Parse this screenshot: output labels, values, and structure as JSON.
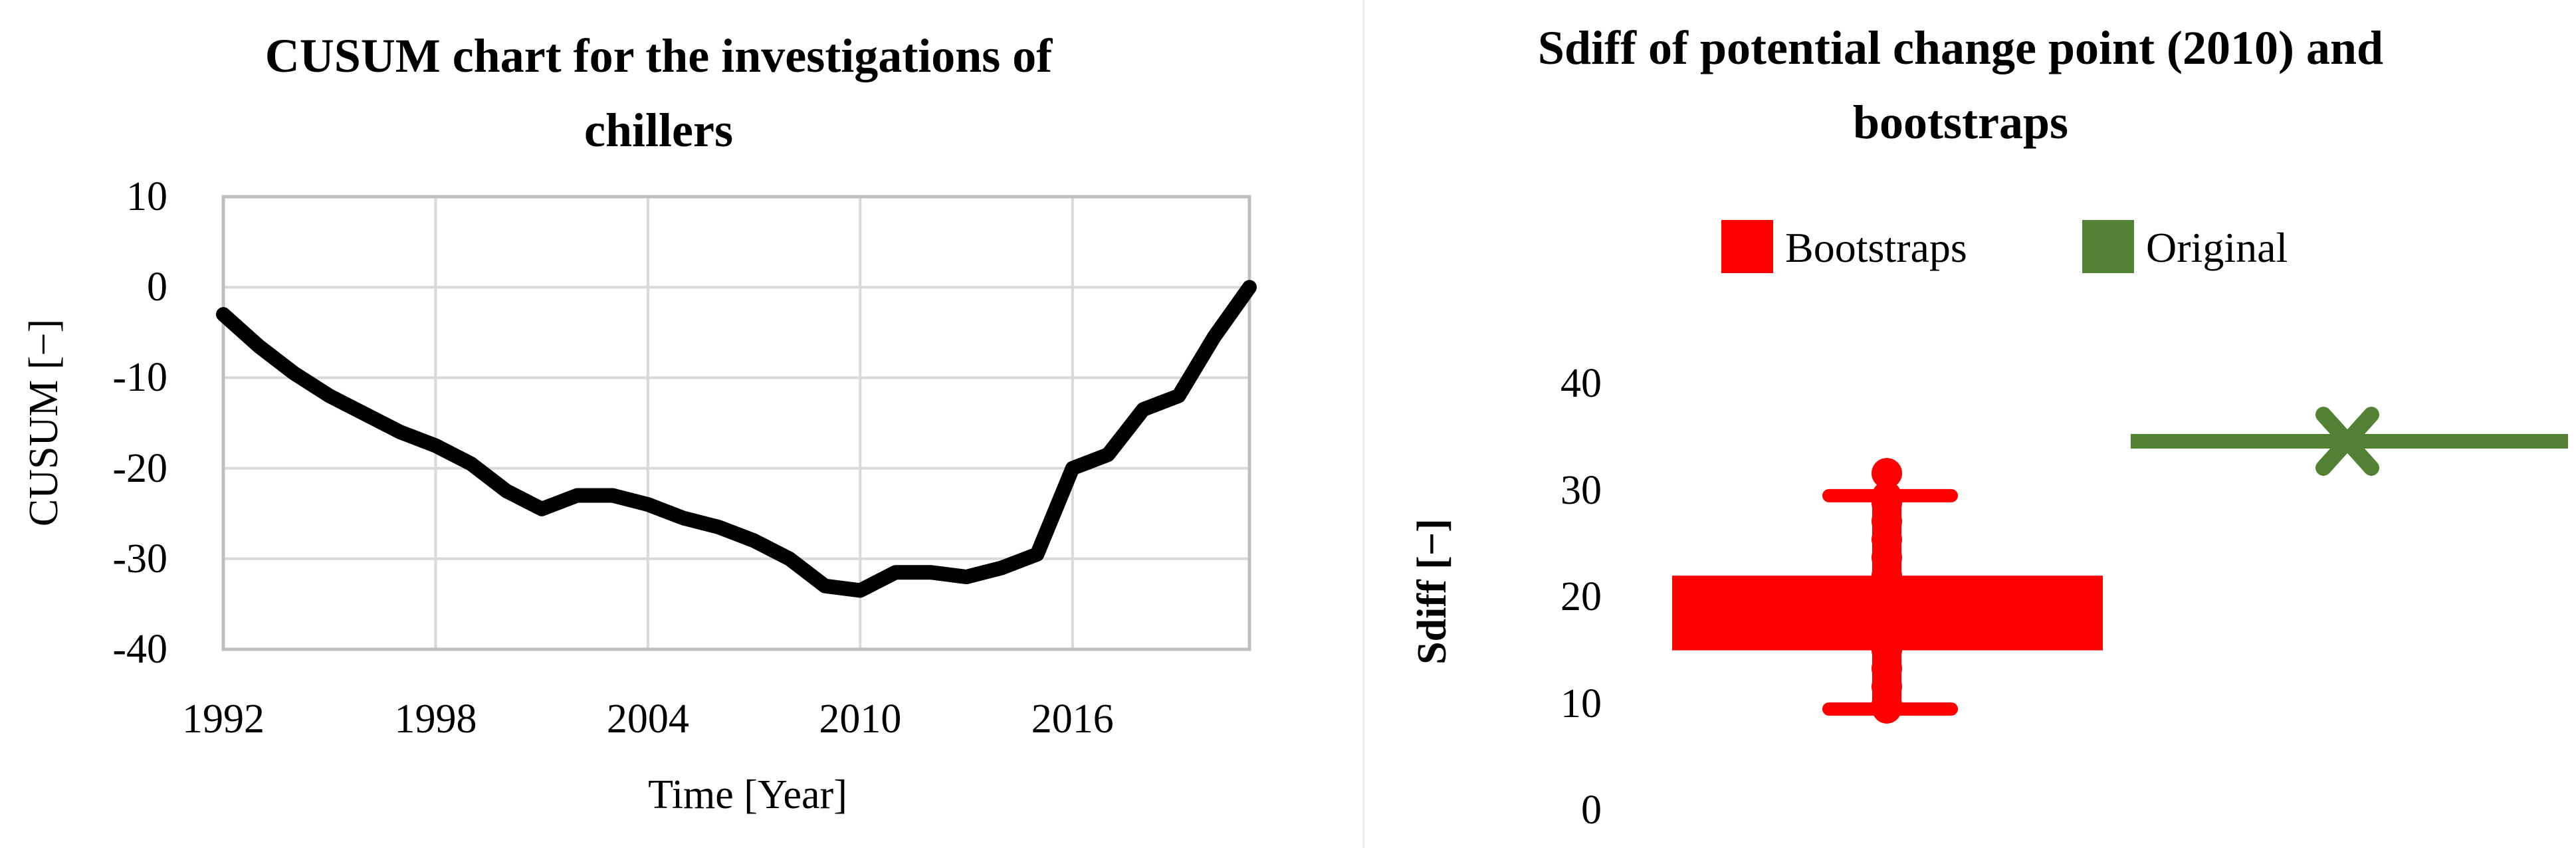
{
  "figure": {
    "left_chart": {
      "title_lines": [
        "CUSUM chart for the investigations of",
        "chillers"
      ],
      "y_axis_title": "CUSUM [−]",
      "x_axis_title": "Time [Year]",
      "y_tick_labels": [
        "10",
        "0",
        "-10",
        "-20",
        "-30",
        "-40"
      ],
      "x_tick_labels": [
        "1992",
        "1998",
        "2004",
        "2010",
        "2016"
      ]
    },
    "right_chart": {
      "title_lines": [
        "Sdiff of potential change point (2010) and",
        "bootstraps"
      ],
      "y_axis_title": "Sdiff  [−]",
      "y_tick_labels": [
        "40",
        "30",
        "20",
        "10",
        "0"
      ],
      "legend": [
        {
          "label": "Bootstraps",
          "color": "#FF0000"
        },
        {
          "label": "Original",
          "color": "#548235"
        }
      ]
    },
    "colors": {
      "line_black": "#000000",
      "bootstrap_red": "#FF0000",
      "original_green": "#548235",
      "gridline_gray": "#D9D9D9",
      "plot_border_gray": "#BFBFBF"
    }
  },
  "chart_data": [
    {
      "type": "line",
      "title": "CUSUM chart for the investigations of chillers",
      "xlabel": "Time [Year]",
      "ylabel": "CUSUM [−]",
      "x": [
        1992,
        1993,
        1994,
        1995,
        1996,
        1997,
        1998,
        1999,
        2000,
        2001,
        2002,
        2003,
        2004,
        2005,
        2006,
        2007,
        2008,
        2009,
        2010,
        2011,
        2012,
        2013,
        2014,
        2015,
        2016,
        2017,
        2018,
        2019,
        2020,
        2021
      ],
      "values": [
        -3,
        -6.5,
        -9.5,
        -12,
        -14,
        -16,
        -17.5,
        -19.5,
        -22.5,
        -24.5,
        -23,
        -23,
        -24,
        -25.5,
        -26.5,
        -28,
        -30,
        -33,
        -33.5,
        -31.5,
        -31.5,
        -32,
        -31,
        -29.5,
        -20,
        -18.5,
        -13.5,
        -12,
        -5.5,
        0
      ],
      "xlim": [
        1992,
        2021
      ],
      "ylim": [
        -40,
        10
      ],
      "xticks": [
        1992,
        1998,
        2004,
        2010,
        2016
      ],
      "yticks": [
        10,
        0,
        -10,
        -20,
        -30,
        -40
      ],
      "grid": true,
      "legend_position": "none",
      "line_color": "#000000",
      "minimum_note": "CUSUM minimum of -33.5 at year 2010 (potential change point)"
    },
    {
      "type": "boxplot",
      "title": "Sdiff of potential change point (2010) and bootstraps",
      "xlabel": "",
      "ylabel": "Sdiff [−]",
      "ylim": [
        0,
        45
      ],
      "yticks": [
        40,
        30,
        20,
        10,
        0
      ],
      "grid": false,
      "legend_position": "top",
      "series": [
        {
          "name": "Bootstraps",
          "color": "#FF0000",
          "box_lower": 15,
          "box_upper": 22,
          "whisker_low": 9.5,
          "whisker_high": 29.5,
          "stacked_points": [
            9.9,
            11.6,
            13.3,
            15.0,
            22.0,
            23.7,
            25.4,
            27.1,
            28.8
          ],
          "outlier": 31.6
        },
        {
          "name": "Original",
          "color": "#548235",
          "value": 34.6,
          "marker": "x",
          "style": "horizontal-line"
        }
      ]
    }
  ]
}
